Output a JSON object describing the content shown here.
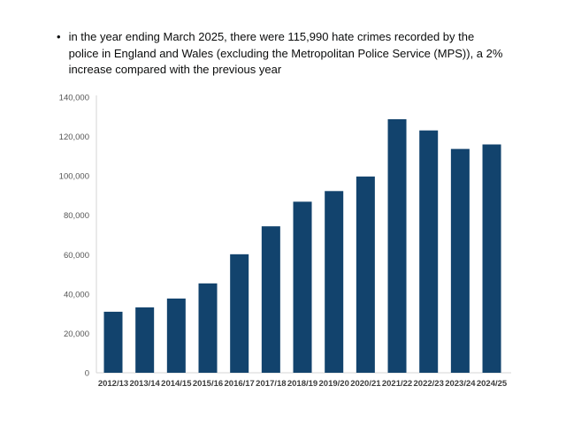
{
  "bullet": {
    "marker": "•",
    "text": "in the year ending March 2025, there were 115,990 hate crimes recorded by the police in England and Wales (excluding the Metropolitan Police Service (MPS)), a 2% increase compared with the previous year",
    "lines": [
      "in the year ending March 2025, there were 115,990 hate crimes recorded by the",
      "police in England and Wales (excluding the Metropolitan Police Service (MPS)), a 2%",
      "increase compared with the previous year"
    ]
  },
  "chart_data": {
    "type": "bar",
    "title": "",
    "xlabel": "",
    "ylabel": "",
    "categories": [
      "2012/13",
      "2013/14",
      "2014/15",
      "2015/16",
      "2016/17",
      "2017/18",
      "2018/19",
      "2019/20",
      "2020/21",
      "2021/22",
      "2022/23",
      "2023/24",
      "2024/25"
    ],
    "values": [
      31000,
      33200,
      37700,
      45400,
      60200,
      74400,
      86900,
      92300,
      99700,
      128800,
      123100,
      113700,
      115990
    ],
    "ylim": [
      0,
      140000
    ],
    "ytick_step": 20000,
    "ytick_labels": [
      "0",
      "20,000",
      "40,000",
      "60,000",
      "80,000",
      "100,000",
      "120,000",
      "140,000"
    ],
    "grid": false,
    "legend": false,
    "colors": {
      "bar": "#12436D",
      "axis_line": "#d6d6d6",
      "ytick_label": "#555555",
      "xtick_label": "#3d3d3d",
      "text": "#0b0c0c",
      "background": "#ffffff"
    }
  }
}
